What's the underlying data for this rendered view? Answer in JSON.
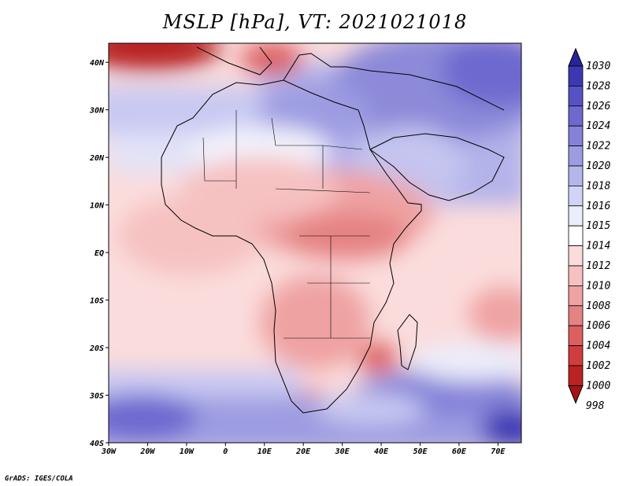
{
  "title": "MSLP [hPa], VT: 2021021018",
  "credit": "GrADS: IGES/COLA",
  "map": {
    "variable": "MSLP",
    "units": "hPa",
    "valid_time": "2021021018",
    "region": "Africa and surrounding oceans",
    "lon_range": [
      -30,
      76
    ],
    "lat_range": [
      -40,
      44
    ],
    "lon_ticks": [
      "30W",
      "20W",
      "10W",
      "0",
      "10E",
      "20E",
      "30E",
      "40E",
      "50E",
      "60E",
      "70E"
    ],
    "lat_ticks": [
      "40N",
      "30N",
      "20N",
      "10N",
      "EQ",
      "10S",
      "20S",
      "30S",
      "40S"
    ]
  },
  "colorbar": {
    "labels": [
      "1030",
      "1028",
      "1026",
      "1024",
      "1022",
      "1020",
      "1018",
      "1016",
      "1015",
      "1014",
      "1012",
      "1010",
      "1008",
      "1006",
      "1004",
      "1002",
      "1000",
      "998"
    ],
    "colors": [
      "#29249b",
      "#3c38b2",
      "#5752c4",
      "#6d69cf",
      "#8482d8",
      "#9d9ce2",
      "#b6b6ec",
      "#d2d4f6",
      "#ecedfb",
      "#ffffff",
      "#fbdcdc",
      "#f6c1c1",
      "#efa2a2",
      "#e58282",
      "#dc6060",
      "#cf3d3d",
      "#bb2222",
      "#a31414"
    ]
  }
}
